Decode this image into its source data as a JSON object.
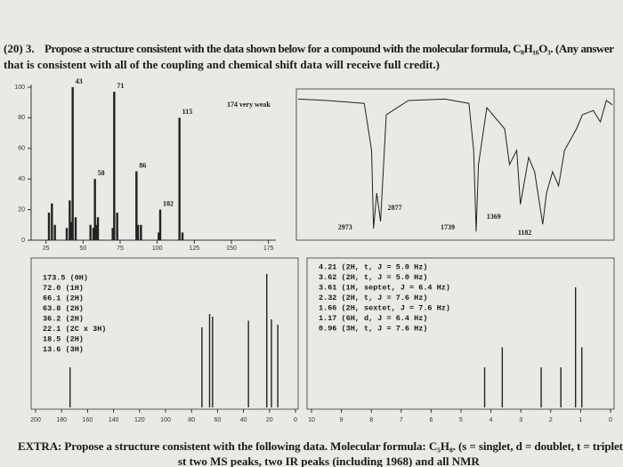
{
  "question": {
    "number": "(20) 3.",
    "line1": "Propose a structure consistent with the data shown below for a compound with the molecular formula, C₈H₁₆O₃. (Any answer",
    "line2": "that is consistent with all of the coupling and chemical shift data will receive full credit.)"
  },
  "ms": {
    "xlim": [
      15,
      180
    ],
    "ylim": [
      0,
      100
    ],
    "xticks": [
      25,
      50,
      75,
      100,
      125,
      150,
      175
    ],
    "yticks": [
      0,
      20,
      40,
      60,
      80,
      100
    ],
    "labeled_peaks": [
      {
        "mz": 43,
        "intensity": 100
      },
      {
        "mz": 71,
        "intensity": 97
      },
      {
        "mz": 115,
        "intensity": 80
      },
      {
        "mz": 86,
        "intensity": 45
      },
      {
        "mz": 58,
        "intensity": 40
      },
      {
        "mz": 102,
        "intensity": 20
      }
    ],
    "other_peaks": [
      {
        "mz": 27,
        "intensity": 18
      },
      {
        "mz": 29,
        "intensity": 24
      },
      {
        "mz": 31,
        "intensity": 10
      },
      {
        "mz": 39,
        "intensity": 8
      },
      {
        "mz": 41,
        "intensity": 26
      },
      {
        "mz": 42,
        "intensity": 12
      },
      {
        "mz": 45,
        "intensity": 15
      },
      {
        "mz": 55,
        "intensity": 10
      },
      {
        "mz": 57,
        "intensity": 8
      },
      {
        "mz": 59,
        "intensity": 10
      },
      {
        "mz": 60,
        "intensity": 15
      },
      {
        "mz": 70,
        "intensity": 8
      },
      {
        "mz": 73,
        "intensity": 18
      },
      {
        "mz": 87,
        "intensity": 10
      },
      {
        "mz": 89,
        "intensity": 10
      },
      {
        "mz": 101,
        "intensity": 5
      },
      {
        "mz": 117,
        "intensity": 5
      }
    ],
    "annotation": "174 very weak"
  },
  "ir": {
    "xlim": [
      4000,
      600
    ],
    "ylim": [
      0,
      100
    ],
    "points": [
      [
        4000,
        96
      ],
      [
        3600,
        95
      ],
      [
        3100,
        93
      ],
      [
        3000,
        60
      ],
      [
        2973,
        5
      ],
      [
        2930,
        30
      ],
      [
        2877,
        10
      ],
      [
        2800,
        85
      ],
      [
        2500,
        95
      ],
      [
        2000,
        96
      ],
      [
        1800,
        93
      ],
      [
        1760,
        60
      ],
      [
        1739,
        3
      ],
      [
        1720,
        50
      ],
      [
        1650,
        90
      ],
      [
        1500,
        75
      ],
      [
        1460,
        50
      ],
      [
        1400,
        60
      ],
      [
        1369,
        22
      ],
      [
        1300,
        55
      ],
      [
        1250,
        45
      ],
      [
        1182,
        8
      ],
      [
        1150,
        30
      ],
      [
        1100,
        45
      ],
      [
        1050,
        35
      ],
      [
        1000,
        60
      ],
      [
        900,
        75
      ],
      [
        850,
        85
      ],
      [
        760,
        88
      ],
      [
        700,
        80
      ],
      [
        650,
        95
      ],
      [
        600,
        92
      ]
    ],
    "annotations": [
      2877,
      2973,
      1739,
      1369,
      1182
    ]
  },
  "c13": {
    "xlim": [
      200,
      0
    ],
    "xticks": [
      200,
      180,
      160,
      140,
      120,
      100,
      80,
      60,
      40,
      20,
      0
    ],
    "lines": [
      "173.5 (0H)",
      "72.0 (1H)",
      "66.1 (2H)",
      "63.8 (2H)",
      "36.2 (2H)",
      "22.1 (2C x 3H)",
      "18.5 (2H)",
      "13.6 (3H)"
    ],
    "peaks": [
      {
        "shift": 173.5,
        "height": 30
      },
      {
        "shift": 72.0,
        "height": 60
      },
      {
        "shift": 66.1,
        "height": 70
      },
      {
        "shift": 63.8,
        "height": 68
      },
      {
        "shift": 36.2,
        "height": 65
      },
      {
        "shift": 22.1,
        "height": 100
      },
      {
        "shift": 18.5,
        "height": 66
      },
      {
        "shift": 13.6,
        "height": 62
      }
    ]
  },
  "h1": {
    "xlim": [
      10,
      0
    ],
    "xticks": [
      10,
      9,
      8,
      7,
      6,
      5,
      4,
      3,
      2,
      1,
      0
    ],
    "lines": [
      "4.21 (2H, t, J = 5.0 Hz)",
      "3.62 (2H, t, J = 5.0 Hz)",
      "3.61 (1H, septet, J = 6.4 Hz)",
      "2.32 (2H, t, J = 7.6 Hz)",
      "1.66 (2H, sextet, J = 7.6 Hz)",
      "1.17 (6H, d, J = 6.4 Hz)",
      "0.96 (3H, t, J = 7.6 Hz)"
    ],
    "peaks": [
      {
        "shift": 4.21,
        "height": 30
      },
      {
        "shift": 3.62,
        "height": 45
      },
      {
        "shift": 2.32,
        "height": 30
      },
      {
        "shift": 1.66,
        "height": 30
      },
      {
        "shift": 1.17,
        "height": 90
      },
      {
        "shift": 0.96,
        "height": 45
      }
    ]
  },
  "extra": {
    "line1": "EXTRA: Propose a structure consistent with the following data. Molecular formula: C₅H₈. (s = singlet, d = doublet, t = triplet",
    "line2": "st two MS peaks, two IR peaks (including 1968) and all NMR"
  }
}
